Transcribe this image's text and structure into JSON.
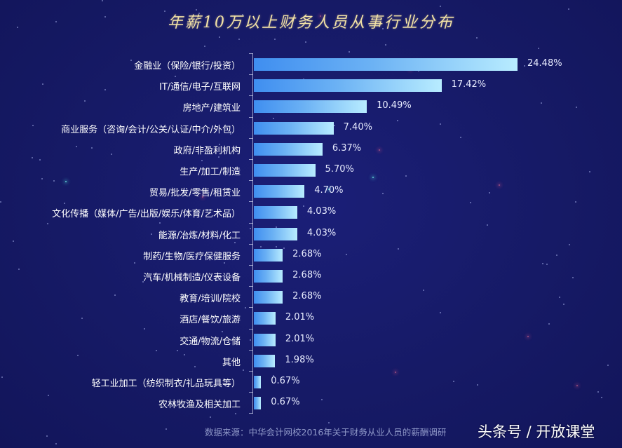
{
  "title": "年薪10万以上财务人员从事行业分布",
  "footer": {
    "source": "数据来源：中华会计网校2016年关于财务从业人员的薪酬调研",
    "watermark": "头条号 / 开放课堂"
  },
  "colors": {
    "background": "#161a66",
    "bar_start": "#3f8ef0",
    "bar_end": "#b8ecff",
    "title": "#f2e2a6",
    "footer_text": "#8f98c8"
  },
  "chart_data": {
    "type": "bar",
    "orientation": "horizontal",
    "title": "年薪10万以上财务人员从事行业分布",
    "xlabel": "",
    "ylabel": "",
    "unit": "%",
    "grid": false,
    "legend": null,
    "xlim": [
      0,
      25
    ],
    "categories": [
      "金融业（保险/银行/投资）",
      "IT/通信/电子/互联网",
      "房地产/建筑业",
      "商业服务（咨询/会计/公关/认证/中介/外包）",
      "政府/非盈利机构",
      "生产/加工/制造",
      "贸易/批发/零售/租赁业",
      "文化传播（媒体/广告/出版/娱乐/体育/艺术品）",
      "能源/冶炼/材料/化工",
      "制药/生物/医疗保健服务",
      "汽车/机械制造/仪表设备",
      "教育/培训/院校",
      "酒店/餐饮/旅游",
      "交通/物流/仓储",
      "其他",
      "轻工业加工（纺织制衣/礼品玩具等）",
      "农林牧渔及相关加工"
    ],
    "values": [
      24.48,
      17.42,
      10.49,
      7.4,
      6.37,
      5.7,
      4.7,
      4.03,
      4.03,
      2.68,
      2.68,
      2.68,
      2.01,
      2.01,
      1.98,
      0.67,
      0.67
    ],
    "value_labels": [
      "24.48%",
      "17.42%",
      "10.49%",
      "7.40%",
      "6.37%",
      "5.70%",
      "4.70%",
      "4.03%",
      "4.03%",
      "2.68%",
      "2.68%",
      "2.68%",
      "2.01%",
      "2.01%",
      "1.98%",
      "0.67%",
      "0.67%"
    ],
    "source": "数据来源：中华会计网校2016年关于财务从业人员的薪酬调研"
  }
}
